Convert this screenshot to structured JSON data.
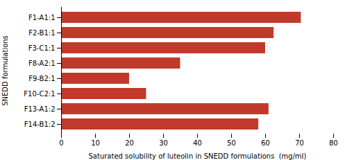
{
  "chart_data": {
    "type": "bar",
    "orientation": "horizontal",
    "categories": [
      "F14-B1:2",
      "F13-A1:2",
      "F10-C2:1",
      "F9-B2:1",
      "F8-A2:1",
      "F3-C1:1",
      "F2-B1:1",
      "F1-A1:1"
    ],
    "values": [
      58.0,
      61.0,
      25.0,
      20.0,
      35.0,
      60.0,
      62.5,
      70.5
    ],
    "color": "#c0392b",
    "xlabel": "Saturated solubility of luteolin in SNEDD formulations  (mg/ml)",
    "ylabel": "SNEDD formulations",
    "xlim": [
      0,
      80
    ],
    "xticks": [
      0,
      10,
      20,
      30,
      40,
      50,
      60,
      70,
      80
    ],
    "grid": false
  }
}
